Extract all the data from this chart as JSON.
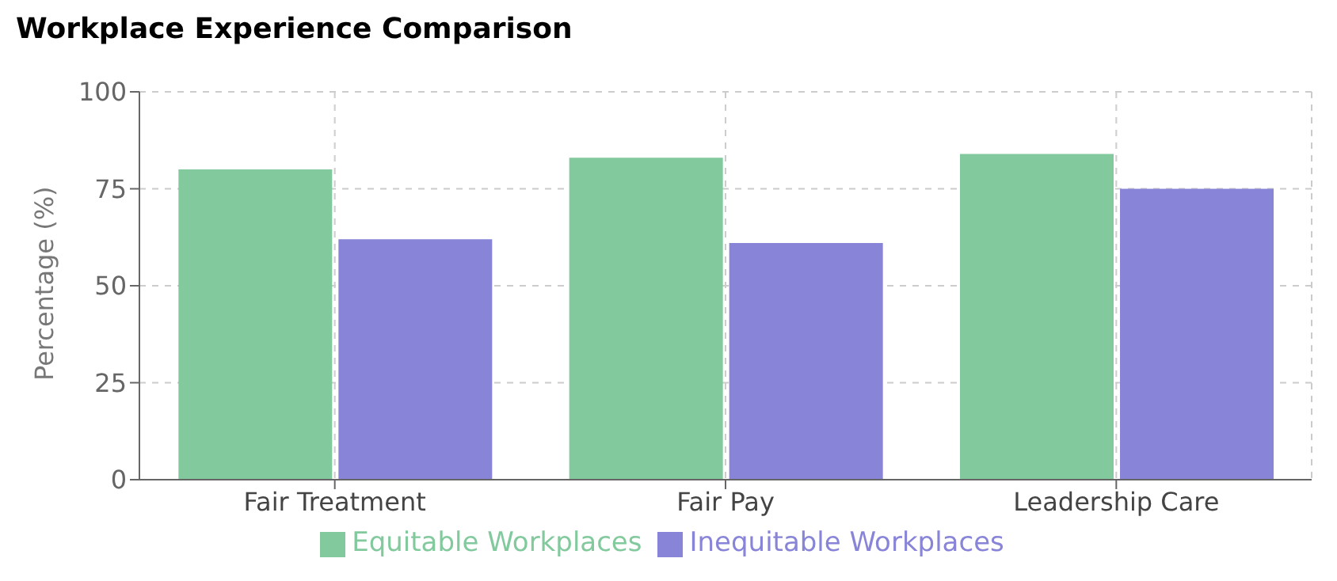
{
  "chart_data": {
    "type": "bar",
    "title": "Workplace Experience Comparison",
    "ylabel": "Percentage (%)",
    "categories": [
      "Fair Treatment",
      "Fair Pay",
      "Leadership Care"
    ],
    "series": [
      {
        "name": "Equitable Workplaces",
        "color": "#82ca9d",
        "values": [
          80,
          83,
          84
        ]
      },
      {
        "name": "Inequitable Workplaces",
        "color": "#8884d8",
        "values": [
          62,
          61,
          75
        ]
      }
    ],
    "ylim": [
      0,
      100
    ],
    "yticks": [
      0,
      25,
      50,
      75,
      100
    ],
    "grid": true,
    "legend": "bottom"
  }
}
